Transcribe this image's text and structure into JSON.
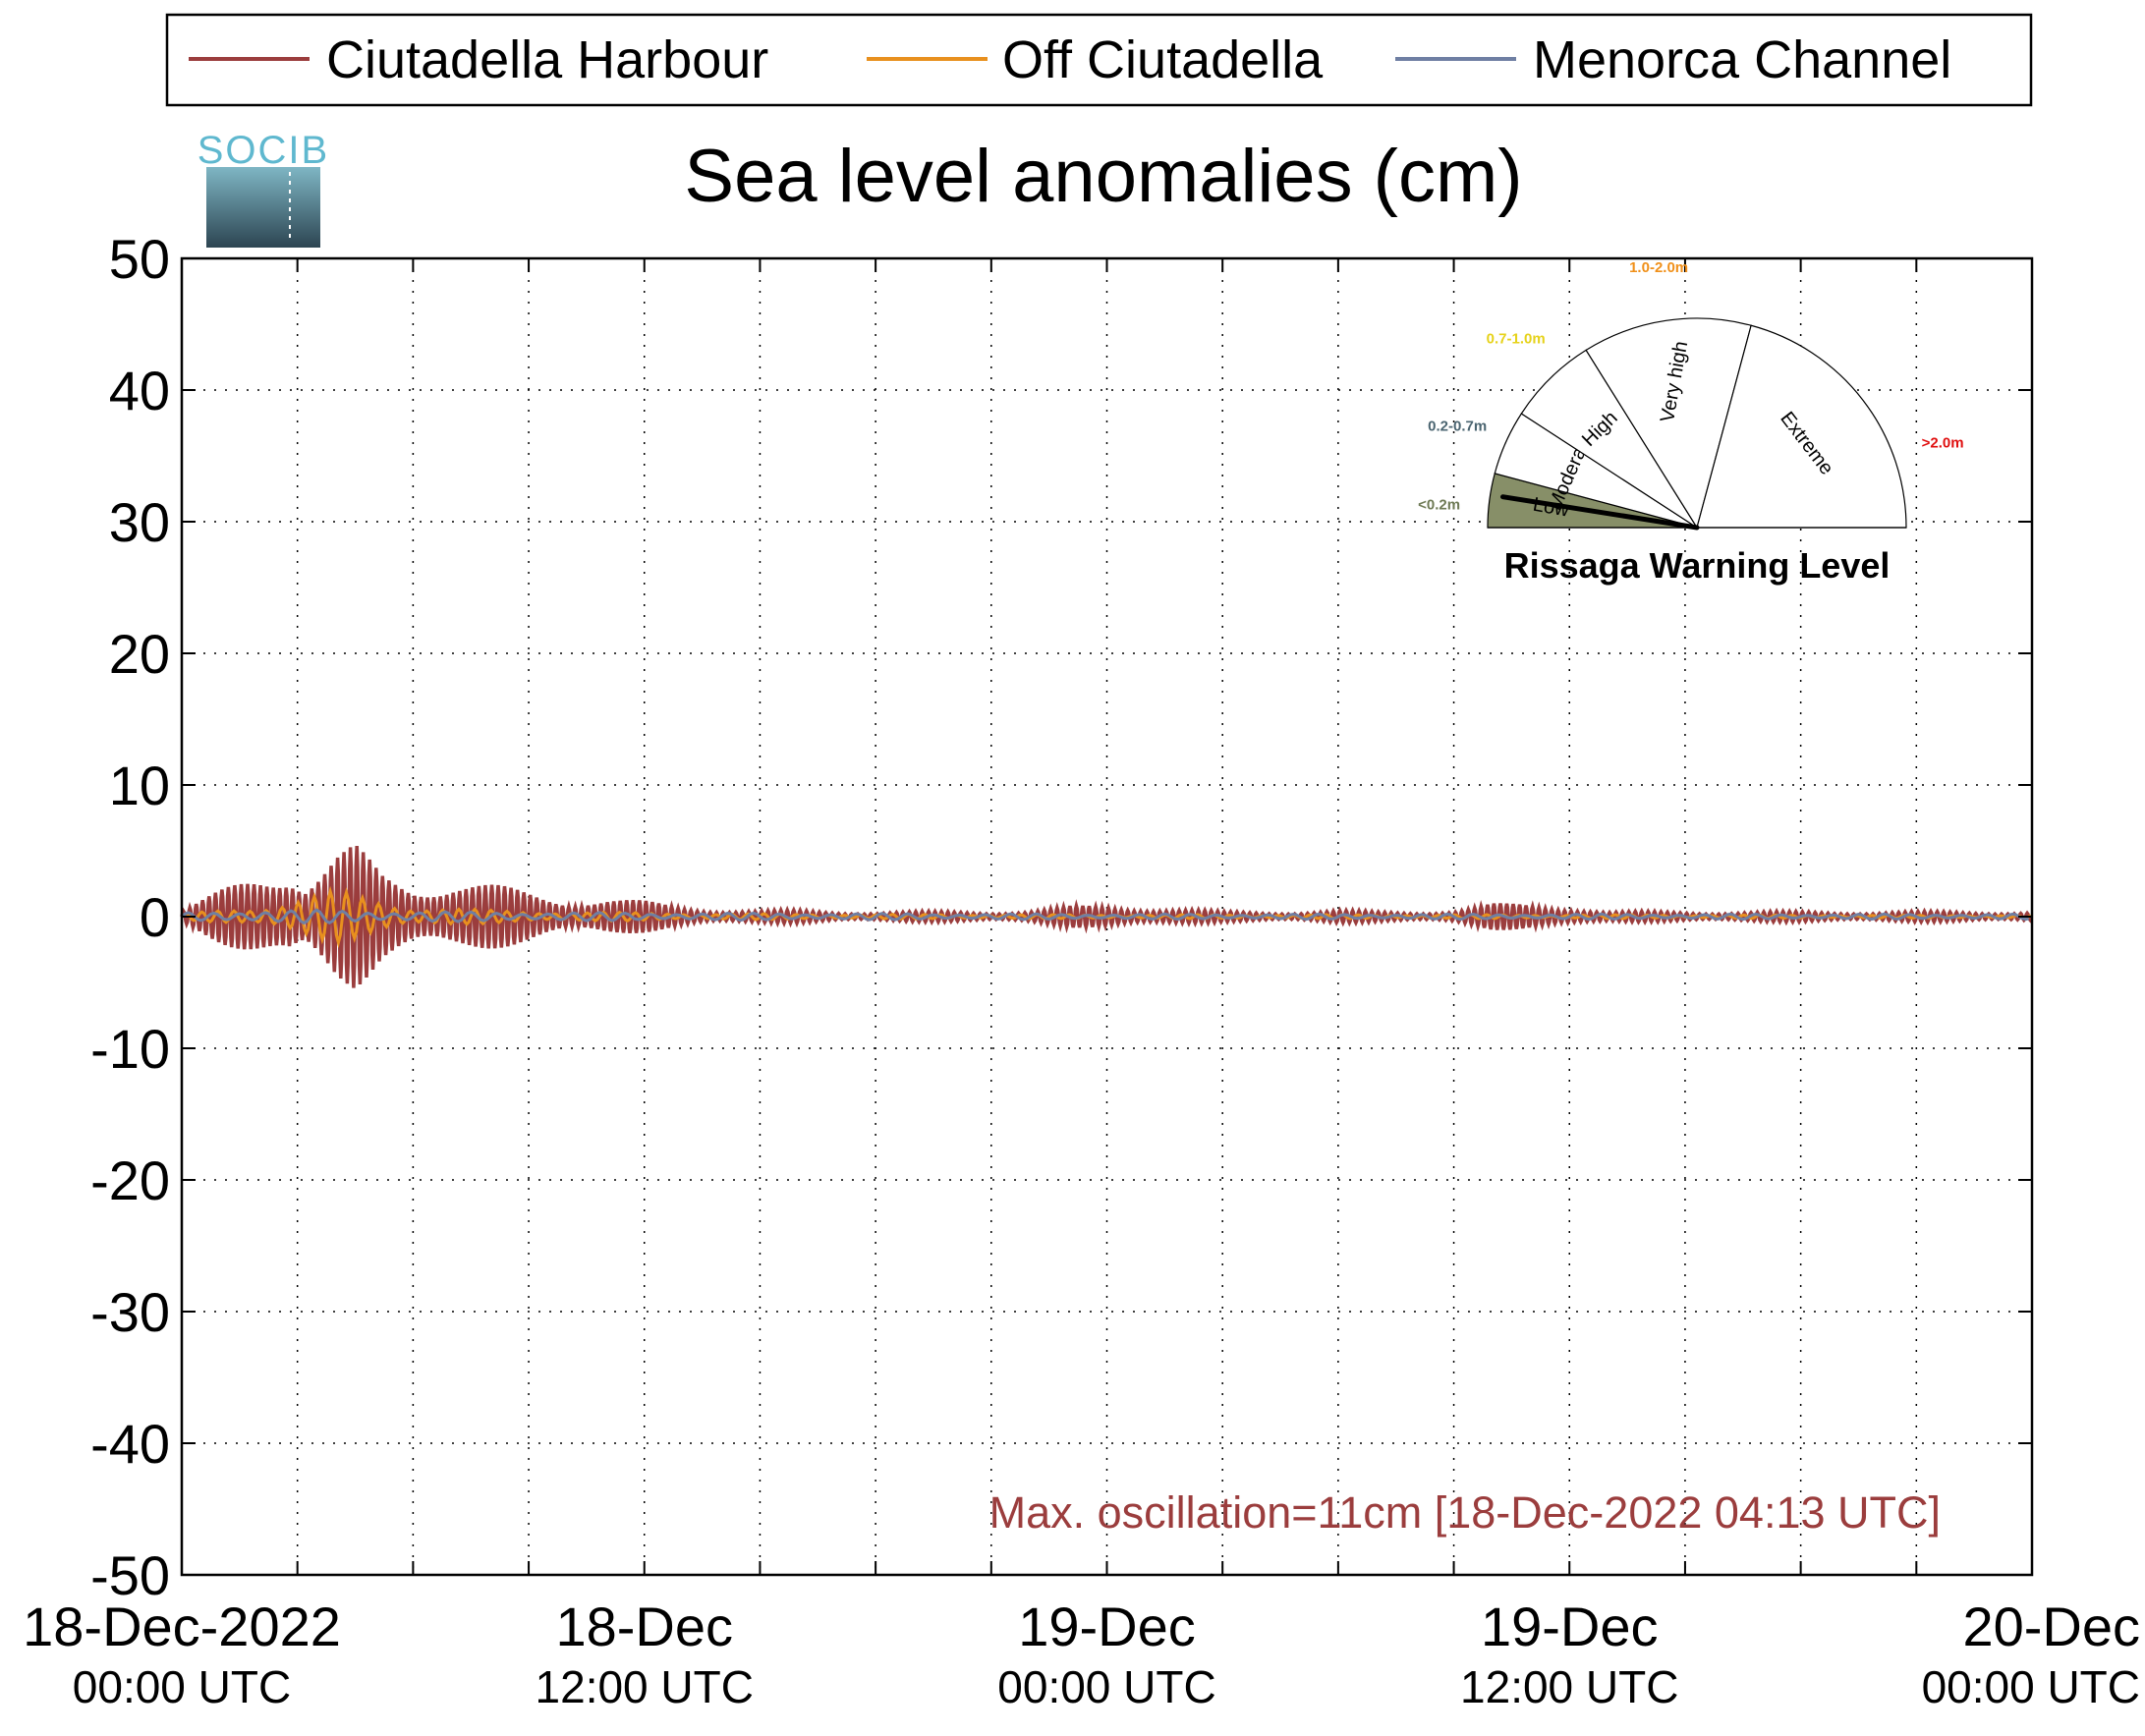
{
  "logo": {
    "text": "SOCIB"
  },
  "legend": {
    "placement": "top",
    "entries": [
      {
        "label": "Ciutadella Harbour",
        "color": "#9b3d3d"
      },
      {
        "label": "Off Ciutadella",
        "color": "#e8901e"
      },
      {
        "label": "Menorca Channel",
        "color": "#6f7fa3"
      }
    ]
  },
  "gauge": {
    "title": "Rissaga Warning Level",
    "sectors": [
      {
        "label": "Low",
        "range": "<0.2m",
        "range_color": "#6e7a55",
        "fill": "#878f68"
      },
      {
        "label": "Moderate",
        "range": "0.2-0.7m",
        "range_color": "#4a6470",
        "fill": "#ffffff"
      },
      {
        "label": "High",
        "range": "0.7-1.0m",
        "range_color": "#e6d21a",
        "fill": "#ffffff"
      },
      {
        "label": "Very high",
        "range": "1.0-2.0m",
        "range_color": "#f0901a",
        "fill": "#ffffff"
      },
      {
        "label": "Extreme",
        "range": ">2.0m",
        "range_color": "#e01010",
        "fill": "#ffffff"
      }
    ],
    "current_level": "Low",
    "needle_fraction": 0.05
  },
  "annotation": {
    "text": "Max. oscillation=11cm [18-Dec-2022 04:13 UTC]",
    "color": "#9b3d3d"
  },
  "chart_data": {
    "type": "line",
    "title": "Sea level anomalies (cm)",
    "xlabel": "",
    "ylabel": "",
    "xlim_hours": [
      0,
      48
    ],
    "ylim": [
      -50,
      50
    ],
    "yticks": [
      50,
      40,
      30,
      20,
      10,
      0,
      -10,
      -20,
      -30,
      -40,
      -50
    ],
    "xtick_labels": [
      {
        "hours": 0,
        "line1": "18-Dec-2022",
        "line2": "00:00 UTC"
      },
      {
        "hours": 12,
        "line1": "18-Dec",
        "line2": "12:00 UTC"
      },
      {
        "hours": 24,
        "line1": "19-Dec",
        "line2": "00:00 UTC"
      },
      {
        "hours": 36,
        "line1": "19-Dec",
        "line2": "12:00 UTC"
      },
      {
        "hours": 48,
        "line1": "20-Dec",
        "line2": "00:00 UTC"
      }
    ],
    "minor_tick_hours": [
      3,
      6,
      9,
      15,
      18,
      21,
      27,
      30,
      33,
      39,
      42,
      45
    ],
    "grid": "dotted",
    "series": [
      {
        "name": "Ciutadella Harbour",
        "color": "#9b3d3d",
        "envelope_hours": [
          0,
          1,
          2,
          2.8,
          3.2,
          4,
          4.5,
          5.2,
          6,
          7,
          8,
          9,
          10,
          11,
          12,
          13,
          14,
          15,
          16,
          17,
          18,
          19,
          20,
          21,
          22,
          23,
          24,
          25,
          26,
          27,
          28,
          29,
          30,
          31,
          32,
          33,
          34,
          35,
          36,
          37,
          38,
          39,
          40,
          41,
          42,
          43,
          44,
          45,
          46,
          47,
          48
        ],
        "envelope_cm": [
          0.5,
          2,
          3.5,
          4.5,
          3,
          5,
          5.5,
          3.5,
          2.8,
          3,
          2.5,
          2,
          1.5,
          1.5,
          1.2,
          0.8,
          0.6,
          0.5,
          0.5,
          0.4,
          0.4,
          0.4,
          0.4,
          0.4,
          0.5,
          0.8,
          0.9,
          0.8,
          0.6,
          0.4,
          0.4,
          0.4,
          0.5,
          0.4,
          0.4,
          0.5,
          1,
          1,
          0.9,
          0.4,
          0.4,
          0.4,
          0.4,
          0.4,
          0.4,
          0.4,
          0.4,
          0.4,
          0.4,
          0.4,
          0.4
        ],
        "period_min": 10
      },
      {
        "name": "Off Ciutadella",
        "color": "#e8901e",
        "envelope_hours": [
          0,
          2,
          3,
          4,
          5,
          6,
          8,
          12,
          16,
          24,
          36,
          48
        ],
        "envelope_cm": [
          0.2,
          0.8,
          1.5,
          2,
          1.5,
          0.8,
          0.5,
          0.3,
          0.2,
          0.15,
          0.15,
          0.1
        ],
        "period_min": 25
      },
      {
        "name": "Menorca Channel",
        "color": "#6f7fa3",
        "envelope_hours": [
          0,
          2,
          4,
          6,
          12,
          24,
          36,
          48
        ],
        "envelope_cm": [
          0.3,
          0.5,
          0.5,
          0.4,
          0.3,
          0.2,
          0.2,
          0.2
        ],
        "period_min": 40
      }
    ]
  }
}
